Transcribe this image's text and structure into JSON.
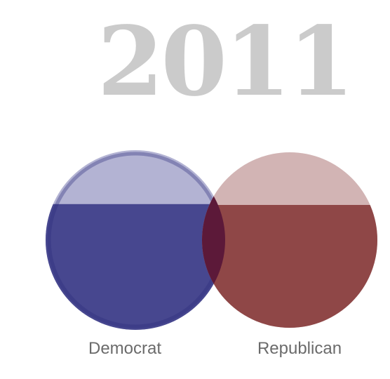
{
  "year": "2011",
  "colors": {
    "democrat_top": "#b3b3d3",
    "democrat_fill": "#47478f",
    "republican_top": "#d1b3b3",
    "republican_fill": "#8f4747",
    "overlap": "#5c1939"
  },
  "groups": [
    {
      "id": "democrat",
      "label": "Democrat",
      "fill_level": 0.7
    },
    {
      "id": "republican",
      "label": "Republican",
      "fill_level": 0.7
    }
  ]
}
